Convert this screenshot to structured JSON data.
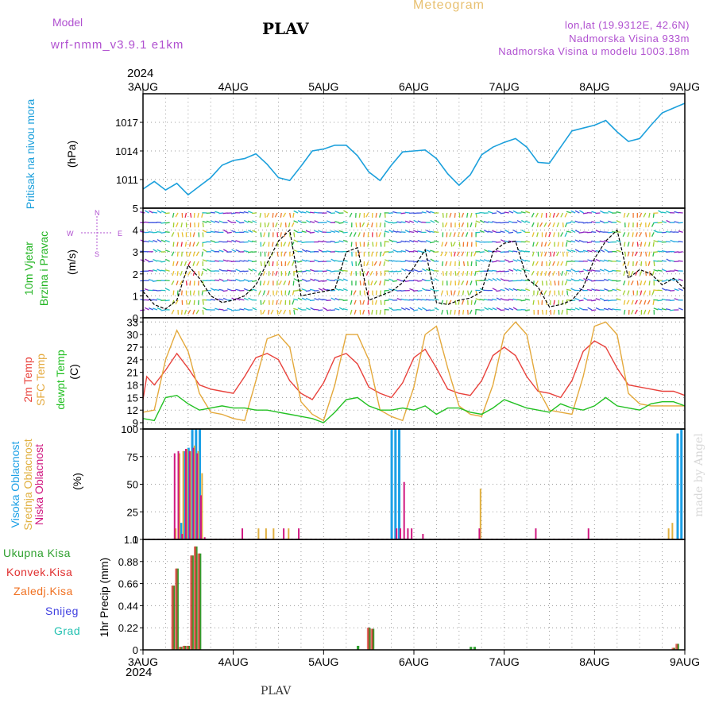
{
  "header": {
    "model_label": "Model",
    "model_name": "wrf-nmm_v3.9.1  e1km",
    "station_title": "PLAV",
    "product_title": "Meteogram",
    "lonlat": "lon,lat (19.9312E, 42.6N)",
    "elevation": "Nadmorska Visina 933m",
    "model_elevation": "Nadmorska Visina u modelu 1003.18m",
    "top_year": "2024",
    "bottom_year": "2024",
    "footer_station": "PLAV",
    "credit": "made by Angel"
  },
  "colors": {
    "pressure": "#1ca0dc",
    "wind_label": "#22b422",
    "temp2m": "#e8423c",
    "sfc": "#e4a93c",
    "dew": "#22c022",
    "high_cloud": "#1ca0e6",
    "mid_cloud": "#e0b040",
    "low_cloud": "#d01880",
    "total_precip": "#2ea02e",
    "conv_precip": "#e03030",
    "frozen": "#f07020",
    "snow": "#4040e0",
    "grad": "#20c0b0",
    "purple": "#b050d0",
    "header_orange": "#e8c070"
  },
  "axis": {
    "day_labels": [
      "3AUG",
      "4AUG",
      "5AUG",
      "6AUG",
      "7AUG",
      "8AUG",
      "9AUG"
    ]
  },
  "panels": {
    "pressure": {
      "label1": "Pritisak na nivou mora",
      "unit": "(hPa)",
      "ticks": [
        "1017",
        "1014",
        "1011"
      ]
    },
    "wind": {
      "label1": "10m Vjetar",
      "label2": "Brzina i Pravac",
      "unit": "(m/s)",
      "ticks": [
        "5",
        "4",
        "3",
        "2",
        "1",
        "0"
      ],
      "compass": {
        "n": "N",
        "s": "S",
        "w": "W",
        "e": "E"
      }
    },
    "temp": {
      "label1": "2m Temp",
      "label2": "SFC Temp",
      "label3": "dewpt Temp",
      "unit": "(C)",
      "ticks": [
        "33",
        "30",
        "27",
        "24",
        "21",
        "18",
        "15",
        "12",
        "9"
      ]
    },
    "cloud": {
      "label1": "Visoka Oblacnost",
      "label2": "Srednja Oblacnost",
      "label3": "Niska Oblacnost",
      "unit": "(%)",
      "ticks": [
        "100",
        "75",
        "50",
        "25",
        "0"
      ]
    },
    "precip": {
      "legend": [
        "Ukupna Kisa",
        "Konvek.Kisa",
        "Zaledj.Kisa",
        "Snijeg",
        "Grad"
      ],
      "ylabel": "1hr Precip (mm)",
      "ticks": [
        "1.1",
        "0.88",
        "0.66",
        "0.44",
        "0.22",
        "0"
      ]
    }
  },
  "chart_data": [
    {
      "type": "line",
      "title": "Pritisak na nivou mora",
      "ylabel": "(hPa)",
      "x_unit": "hours from 3AUG 00",
      "ylim": [
        1008,
        1020
      ],
      "series": [
        {
          "name": "Pritisak na nivou mora",
          "x": [
            0,
            3,
            6,
            9,
            12,
            15,
            18,
            21,
            24,
            27,
            30,
            33,
            36,
            39,
            42,
            45,
            48,
            51,
            54,
            57,
            60,
            63,
            66,
            69,
            72,
            75,
            78,
            81,
            84,
            87,
            90,
            93,
            96,
            99,
            102,
            105,
            108,
            111,
            114,
            117,
            120,
            123,
            126,
            129,
            132,
            135,
            138,
            141,
            144
          ],
          "y": [
            1010.0,
            1010.8,
            1009.9,
            1010.6,
            1009.4,
            1010.3,
            1011.2,
            1012.5,
            1013.0,
            1013.2,
            1013.7,
            1012.6,
            1011.2,
            1010.9,
            1012.4,
            1014.0,
            1014.2,
            1014.6,
            1014.6,
            1013.5,
            1011.8,
            1010.9,
            1012.5,
            1013.9,
            1014.0,
            1014.1,
            1013.2,
            1011.6,
            1010.4,
            1011.5,
            1013.6,
            1014.4,
            1014.9,
            1015.3,
            1014.4,
            1012.8,
            1012.7,
            1014.4,
            1016.1,
            1016.4,
            1016.7,
            1017.2,
            1016.0,
            1015.0,
            1015.3,
            1016.7,
            1018.0,
            1018.5,
            1019.0
          ]
        }
      ]
    },
    {
      "type": "line",
      "title": "10m Vjetar Brzina i Pravac",
      "ylabel": "(m/s)",
      "x_unit": "hours from 3AUG 00",
      "ylim": [
        0,
        5
      ],
      "series": [
        {
          "name": "10m Vjetar",
          "x": [
            0,
            3,
            6,
            9,
            12,
            15,
            18,
            21,
            24,
            27,
            30,
            33,
            36,
            39,
            42,
            45,
            48,
            51,
            54,
            57,
            60,
            63,
            66,
            69,
            72,
            75,
            78,
            81,
            84,
            87,
            90,
            93,
            96,
            99,
            102,
            105,
            108,
            111,
            114,
            117,
            120,
            123,
            126,
            129,
            132,
            135,
            138,
            141,
            144
          ],
          "y": [
            1.2,
            0.6,
            0.4,
            0.8,
            2.4,
            1.8,
            1.0,
            0.7,
            0.8,
            1.0,
            1.5,
            2.5,
            3.5,
            4.0,
            1.0,
            1.1,
            1.2,
            1.3,
            3.0,
            3.2,
            0.8,
            1.0,
            1.2,
            1.6,
            2.3,
            3.1,
            0.7,
            0.6,
            0.8,
            0.9,
            1.2,
            3.0,
            3.4,
            3.5,
            1.8,
            1.4,
            0.5,
            0.6,
            0.8,
            1.4,
            2.7,
            3.5,
            4.0,
            1.8,
            2.2,
            2.0,
            1.5,
            1.8,
            1.3
          ]
        }
      ]
    },
    {
      "type": "line",
      "title": "2m Temp / SFC Temp / dewpt Temp",
      "ylabel": "(C)",
      "x_unit": "hours from 3AUG 00",
      "ylim": [
        7.5,
        34
      ],
      "series": [
        {
          "name": "2m Temp",
          "x": [
            0,
            1,
            3,
            6,
            9,
            12,
            15,
            18,
            21,
            24,
            27,
            30,
            33,
            36,
            39,
            42,
            45,
            48,
            51,
            54,
            57,
            60,
            63,
            66,
            69,
            72,
            75,
            78,
            81,
            84,
            87,
            90,
            93,
            96,
            99,
            102,
            105,
            108,
            111,
            114,
            117,
            120,
            123,
            126,
            129,
            132,
            135,
            138,
            141,
            144
          ],
          "y": [
            14.5,
            20.0,
            18.0,
            21.5,
            25.5,
            22.0,
            18.0,
            17.0,
            16.5,
            16.0,
            20.0,
            24.5,
            25.5,
            24.0,
            19.0,
            16.0,
            14.5,
            18.5,
            24.5,
            25.5,
            23.0,
            17.5,
            16.0,
            15.0,
            18.5,
            24.5,
            26.5,
            22.0,
            17.0,
            16.0,
            15.5,
            19.0,
            25.0,
            27.0,
            25.0,
            20.0,
            16.5,
            16.0,
            15.0,
            19.0,
            26.0,
            28.5,
            27.0,
            22.0,
            18.0,
            17.5,
            17.0,
            16.5,
            16.5,
            15.5
          ]
        },
        {
          "name": "SFC Temp",
          "x": [
            0,
            3,
            6,
            9,
            12,
            15,
            18,
            21,
            24,
            27,
            30,
            33,
            36,
            39,
            42,
            45,
            48,
            51,
            54,
            57,
            60,
            63,
            66,
            69,
            72,
            75,
            78,
            81,
            84,
            87,
            90,
            93,
            96,
            99,
            102,
            105,
            108,
            111,
            114,
            117,
            120,
            123,
            126,
            129,
            132,
            135,
            138,
            141,
            144
          ],
          "y": [
            11.5,
            12.0,
            24.0,
            31.0,
            26.0,
            16.0,
            11.5,
            11.0,
            10.0,
            9.5,
            19.0,
            29.0,
            30.0,
            27.0,
            14.0,
            11.0,
            9.5,
            18.0,
            30.0,
            30.0,
            24.0,
            12.0,
            10.5,
            9.5,
            17.5,
            30.0,
            32.0,
            22.0,
            13.0,
            11.0,
            10.5,
            18.0,
            30.0,
            33.0,
            30.0,
            17.0,
            12.0,
            11.5,
            11.0,
            20.0,
            32.0,
            33.0,
            30.0,
            16.0,
            13.5,
            13.0,
            13.0,
            13.0,
            13.0
          ]
        },
        {
          "name": "dewpt Temp",
          "x": [
            0,
            3,
            6,
            9,
            12,
            15,
            18,
            21,
            24,
            27,
            30,
            33,
            36,
            39,
            42,
            45,
            48,
            51,
            54,
            57,
            60,
            63,
            66,
            69,
            72,
            75,
            78,
            81,
            84,
            87,
            90,
            93,
            96,
            99,
            102,
            105,
            108,
            111,
            114,
            117,
            120,
            123,
            126,
            129,
            132,
            135,
            138,
            141,
            144
          ],
          "y": [
            10.0,
            9.5,
            15.0,
            15.5,
            13.5,
            12.0,
            12.5,
            13.0,
            12.5,
            12.5,
            12.0,
            12.0,
            11.5,
            11.0,
            10.5,
            10.0,
            9.0,
            11.5,
            14.5,
            15.0,
            13.0,
            12.0,
            12.0,
            12.5,
            12.0,
            13.0,
            11.0,
            12.5,
            12.5,
            11.5,
            11.0,
            12.5,
            14.5,
            13.5,
            12.5,
            12.0,
            11.5,
            13.5,
            12.5,
            12.0,
            13.0,
            15.0,
            13.0,
            12.5,
            12.0,
            13.5,
            14.0,
            14.0,
            13.0
          ]
        }
      ]
    },
    {
      "type": "bar",
      "title": "Visoka / Srednja / Niska Oblacnost",
      "ylabel": "(%)",
      "x_unit": "hours from 3AUG 00",
      "ylim": [
        0,
        100
      ],
      "series": [
        {
          "name": "Visoka Oblacnost",
          "x": [
            10,
            11,
            12,
            13,
            14,
            15,
            66,
            67,
            68,
            141,
            142,
            143
          ],
          "values": [
            15,
            80,
            83,
            100,
            100,
            100,
            100,
            100,
            100,
            0,
            96,
            100
          ]
        },
        {
          "name": "Srednja Oblacnost",
          "x": [
            9,
            10,
            11,
            12,
            13,
            14,
            15,
            16,
            31,
            33,
            35,
            39,
            90,
            140,
            141
          ],
          "values": [
            10,
            78,
            80,
            82,
            80,
            85,
            80,
            60,
            10,
            10,
            10,
            10,
            46,
            10,
            15
          ]
        },
        {
          "name": "Niska Oblacnost",
          "x": [
            8,
            9,
            10,
            11,
            12,
            13,
            14,
            15,
            16,
            26,
            37,
            41,
            67,
            68,
            69,
            70,
            71,
            74,
            89,
            104,
            118
          ],
          "values": [
            78,
            80,
            5,
            82,
            80,
            83,
            78,
            40,
            2,
            10,
            10,
            10,
            10,
            10,
            52,
            10,
            10,
            5,
            10,
            10,
            10
          ]
        }
      ]
    },
    {
      "type": "bar",
      "title": "1hr Precip",
      "ylabel": "1hr Precip (mm)",
      "x_unit": "hours from 3AUG 00",
      "ylim": [
        0,
        1.1
      ],
      "series": [
        {
          "name": "Ukupna Kisa",
          "x": [
            8,
            9,
            10,
            11,
            12,
            13,
            14,
            15,
            57,
            60,
            61,
            87,
            88,
            141,
            142
          ],
          "values": [
            0.64,
            0.81,
            0.03,
            0.04,
            0.04,
            0.94,
            1.03,
            0.96,
            0.04,
            0.22,
            0.21,
            0.03,
            0.03,
            0.02,
            0.06
          ]
        },
        {
          "name": "Konvek.Kisa",
          "x": [
            8,
            9,
            10,
            11,
            12,
            13,
            14,
            15,
            60,
            61,
            141,
            142
          ],
          "values": [
            0.64,
            0.81,
            0.03,
            0.04,
            0.04,
            0.94,
            1.03,
            0.96,
            0.22,
            0.21,
            0.02,
            0.06
          ]
        }
      ]
    }
  ]
}
